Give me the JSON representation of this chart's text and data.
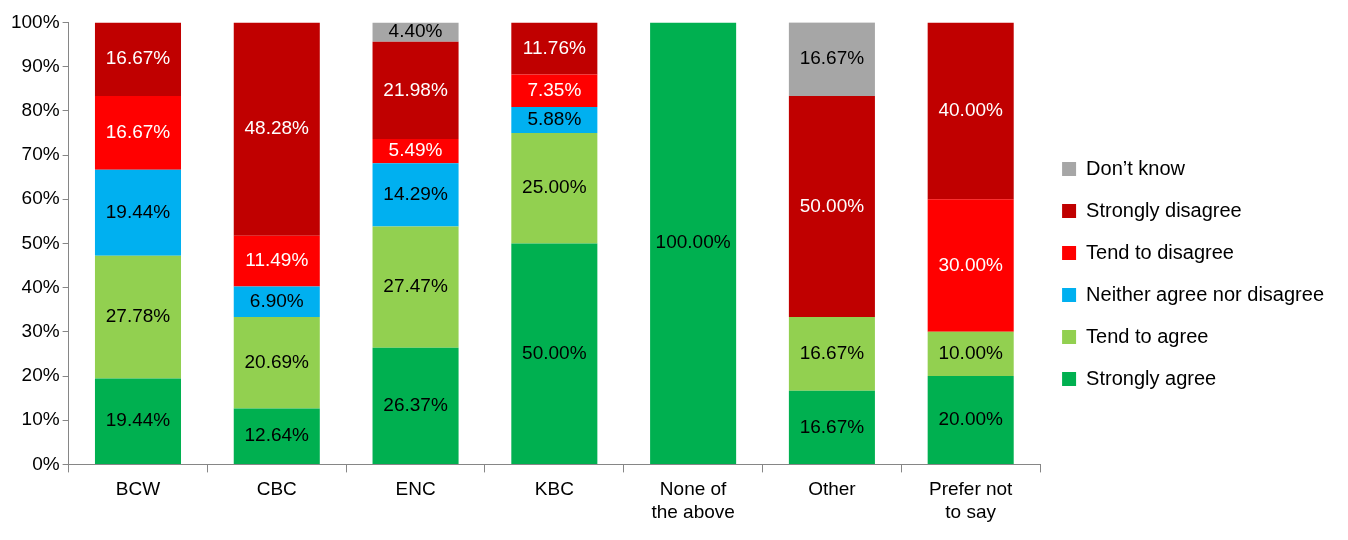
{
  "chart_data": {
    "type": "bar",
    "stacked": true,
    "categories": [
      "BCW",
      "CBC",
      "ENC",
      "KBC",
      "None of the above",
      "Other",
      "Prefer not to say"
    ],
    "series": [
      {
        "name": "Strongly agree",
        "color": "#00b050",
        "values": [
          19.44,
          12.64,
          26.37,
          50,
          100,
          16.67,
          20
        ],
        "value_labels": [
          "19.44%",
          "12.64%",
          "26.37%",
          "50.00%",
          "100.00%",
          "16.67%",
          "20.00%"
        ]
      },
      {
        "name": "Tend to agree",
        "color": "#92d050",
        "values": [
          27.78,
          20.69,
          27.47,
          25,
          0,
          16.67,
          10
        ],
        "value_labels": [
          "27.78%",
          "20.69%",
          "27.47%",
          "25.00%",
          null,
          "16.67%",
          "10.00%"
        ]
      },
      {
        "name": "Neither agree nor disagree",
        "color": "#00b0f0",
        "values": [
          19.44,
          6.9,
          14.29,
          5.88,
          0,
          0,
          0
        ],
        "value_labels": [
          "19.44%",
          "6.90%",
          "14.29%",
          "5.88%",
          null,
          null,
          null
        ]
      },
      {
        "name": "Tend to disagree",
        "color": "#ff0000",
        "values": [
          16.67,
          11.49,
          5.49,
          7.35,
          0,
          0,
          30
        ],
        "value_labels": [
          "16.67%",
          "11.49%",
          "5.49%",
          "7.35%",
          null,
          null,
          "30.00%"
        ]
      },
      {
        "name": "Strongly disagree",
        "color": "#c00000",
        "values": [
          16.67,
          48.28,
          21.98,
          11.76,
          0,
          50,
          40
        ],
        "value_labels": [
          "16.67%",
          "48.28%",
          "21.98%",
          "11.76%",
          null,
          "50.00%",
          "40.00%"
        ]
      },
      {
        "name": "Don’t know",
        "color": "#a6a6a6",
        "values": [
          0,
          0,
          4.4,
          0,
          0,
          16.67,
          0
        ],
        "value_labels": [
          null,
          null,
          "4.40%",
          null,
          null,
          "16.67%",
          null
        ]
      }
    ],
    "ylim": [
      0,
      100
    ],
    "yticks": [
      {
        "value": 0,
        "label": "0%"
      },
      {
        "value": 10,
        "label": "10%"
      },
      {
        "value": 20,
        "label": "20%"
      },
      {
        "value": 30,
        "label": "30%"
      },
      {
        "value": 40,
        "label": "40%"
      },
      {
        "value": 50,
        "label": "50%"
      },
      {
        "value": 60,
        "label": "60%"
      },
      {
        "value": 70,
        "label": "70%"
      },
      {
        "value": 80,
        "label": "80%"
      },
      {
        "value": 90,
        "label": "90%"
      },
      {
        "value": 100,
        "label": "100%"
      }
    ],
    "grid": false,
    "legend": "right"
  }
}
